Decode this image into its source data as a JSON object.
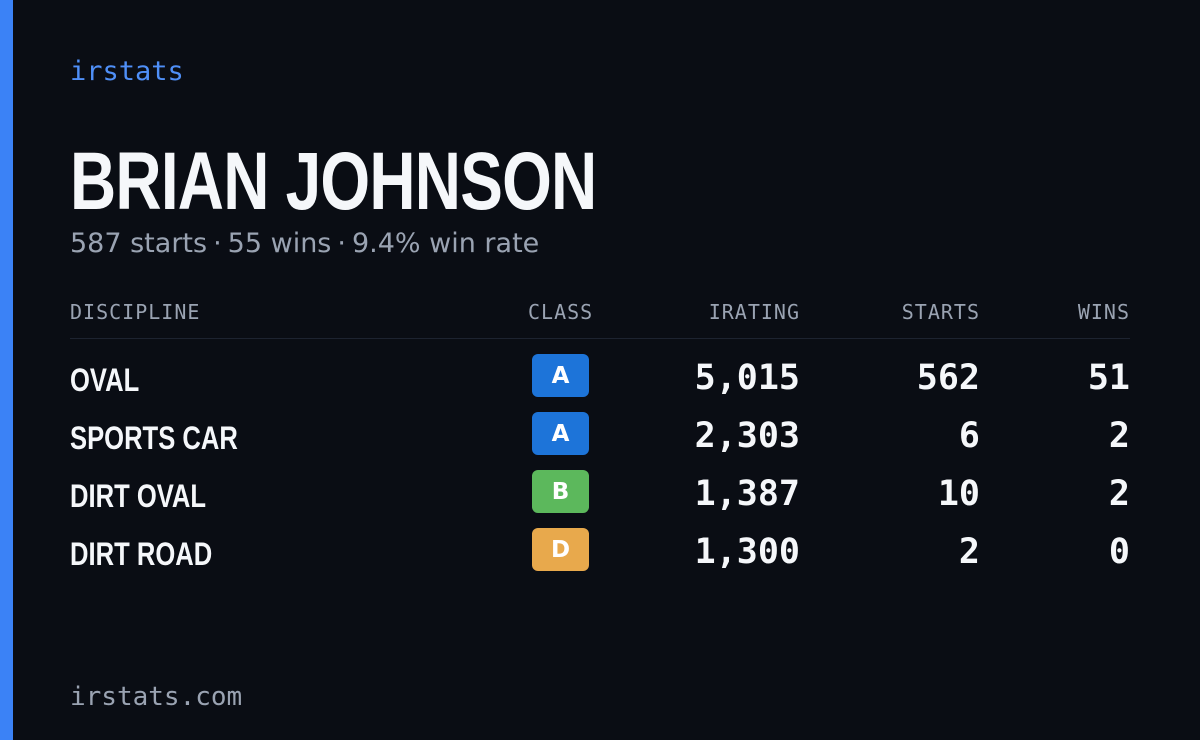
{
  "brand": "irstats",
  "driver": {
    "name": "BRIAN JOHNSON",
    "starts_text": "587 starts",
    "wins_text": "55 wins",
    "winrate_text": "9.4% win rate",
    "separator": "·"
  },
  "table": {
    "headers": {
      "discipline": "DISCIPLINE",
      "class": "CLASS",
      "irating": "IRATING",
      "starts": "STARTS",
      "wins": "WINS"
    },
    "rows": [
      {
        "discipline": "OVAL",
        "class": "A",
        "class_color": "#1d74d9",
        "irating": "5,015",
        "starts": "562",
        "wins": "51"
      },
      {
        "discipline": "SPORTS CAR",
        "class": "A",
        "class_color": "#1d74d9",
        "irating": "2,303",
        "starts": "6",
        "wins": "2"
      },
      {
        "discipline": "DIRT OVAL",
        "class": "B",
        "class_color": "#5cb85c",
        "irating": "1,387",
        "starts": "10",
        "wins": "2"
      },
      {
        "discipline": "DIRT ROAD",
        "class": "D",
        "class_color": "#e8a94c",
        "irating": "1,300",
        "starts": "2",
        "wins": "0"
      }
    ]
  },
  "footer": "irstats.com",
  "colors": {
    "background": "#0a0d14",
    "accent": "#3b82f6",
    "brand_text": "#4f8ff7",
    "muted": "#9aa3b2",
    "text": "#f5f7fa"
  }
}
